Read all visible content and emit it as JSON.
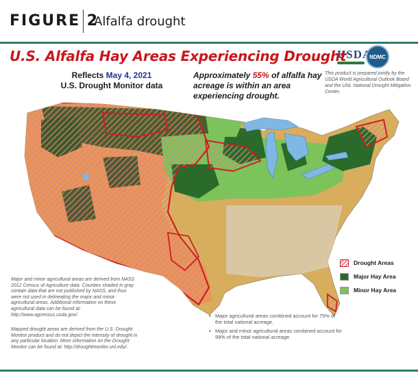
{
  "header": {
    "figure_label": "FIGURE 2",
    "figure_title": "Alfalfa drought"
  },
  "map": {
    "title": "U.S. Alfalfa Hay Areas Experiencing Drought",
    "reflects_prefix": "Reflects",
    "reflects_date": "May 4, 2021",
    "reflects_source": "U.S. Drought Monitor data",
    "approx_prefix": "Approximately",
    "approx_pct": "55%",
    "approx_suffix": "of alfalfa hay acreage is within an area experiencing drought.",
    "logo_usda": "USDA",
    "logo_ndmc": "NDMC",
    "credit": "This product is prepared jointly by the USDA World Agricultural Outlook Board and the UNL National Drought Mitigation Center."
  },
  "legend": {
    "items": [
      {
        "label": "Drought Areas",
        "color": "#d11d24"
      },
      {
        "label": "Major Hay Area",
        "color": "#2a6a2a"
      },
      {
        "label": "Minor Hay Area",
        "color": "#7cc35b"
      }
    ]
  },
  "notes": {
    "left1": "Major and minor agricultural areas are derived from NASS 2012 Census of Agriculture data. Counties shaded in gray contain data that are not published by NASS, and thus were not used in delineating the major and minor agricultural areas. Additional information on these agricultural data can be found at: http://www.agcensus.usda.gov/.",
    "left2": "Mapped drought areas are derived from the U.S. Drought Monitor product and do not depict the intensity of drought in any particular location. More information on the Drought Monitor can be found at: http://droughtmonitor.unl.edu/.",
    "bullet1": "Major agricultural areas combined account for 75% of the total national acreage.",
    "bullet2": "Major and minor agricultural areas combined account for 99% of the total national acreage."
  },
  "colors": {
    "accent_rule": "#2f7a6b",
    "title_red": "#c8171d",
    "date_blue": "#22319a",
    "land_tan": "#d8ad5e",
    "land_orange": "#e6965a",
    "major_green": "#2a6a2a",
    "minor_green": "#7cc35b",
    "water_blue": "#7fb8e3",
    "drought_outline": "#d11d24"
  }
}
